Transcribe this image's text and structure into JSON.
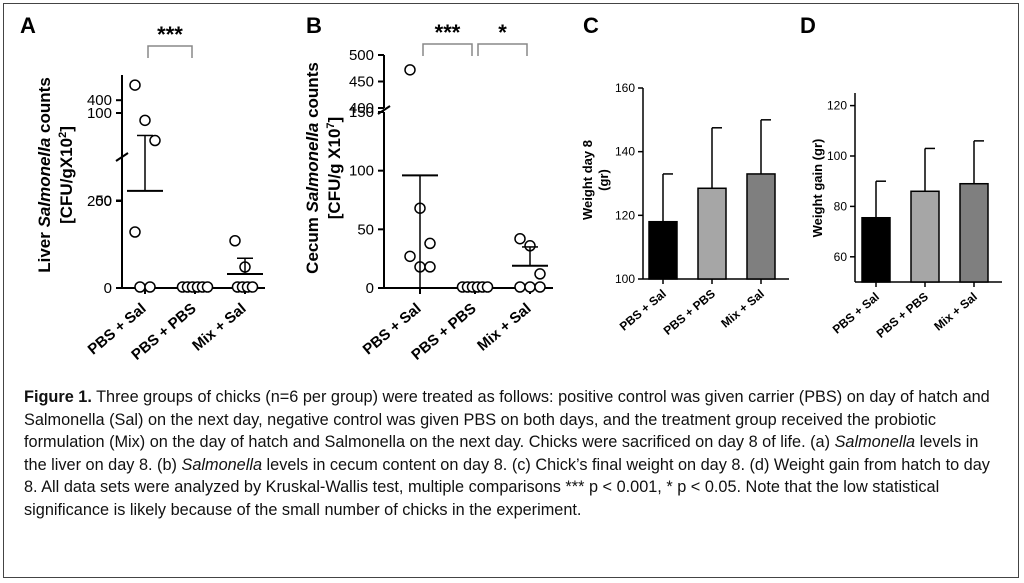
{
  "caption": {
    "figure_number": "Figure 1.",
    "parts": [
      {
        "t": " Three groups of chicks (n=6 per group) were treated as follows: positive control was given carrier (PBS) on day of hatch and Salmonella (Sal) on the next day, negative control was given PBS on both days, and the treatment group received the probiotic formulation (Mix) on the day of hatch and Salmonella on the next day. Chicks were sacrificed on day 8 of life. (a) ",
        "i": false
      },
      {
        "t": "Salmonella",
        "i": true
      },
      {
        "t": " levels in the liver on day 8. (b) ",
        "i": false
      },
      {
        "t": "Salmonella",
        "i": true
      },
      {
        "t": " levels in cecum content on day 8. (c) Chick’s final weight on day 8. (d) Weight gain from hatch to day 8. All data sets were analyzed by Kruskal-Wallis test, multiple comparisons *** p < 0.001, * p < 0.05. Note that the low statistical significance is likely because of the small number of chicks in the experiment.",
        "i": false
      }
    ]
  },
  "chart_data": [
    {
      "panel": "A",
      "type": "scatter",
      "ylabel_parts": [
        "Liver ",
        "Salmonella",
        " counts"
      ],
      "ylabel_unit": "[CFU/gX10",
      "ylabel_unit_sup": "2",
      "ylabel_unit_end": "]",
      "categories": [
        "PBS + Sal",
        "PBS + PBS",
        "Mix + Sal"
      ],
      "axis_segments": [
        {
          "ylim": [
            0,
            100
          ],
          "ticks": [
            0,
            50,
            100
          ]
        },
        {
          "ylim": [
            200,
            450
          ],
          "ticks": [
            200,
            400
          ]
        }
      ],
      "points": [
        {
          "category": "PBS + Sal",
          "values": [
            430,
            360,
            320,
            32,
            1,
            1
          ]
        },
        {
          "category": "PBS + PBS",
          "values": [
            0,
            0,
            0,
            0,
            0,
            0
          ]
        },
        {
          "category": "Mix + Sal",
          "values": [
            27,
            12,
            2,
            2,
            2,
            2
          ]
        }
      ],
      "mean": [
        220,
        0,
        8
      ],
      "sd_upper": [
        330,
        0,
        17
      ],
      "significance": [
        {
          "from": "PBS + Sal",
          "to": "PBS + PBS",
          "label": "***"
        }
      ]
    },
    {
      "panel": "B",
      "type": "scatter",
      "ylabel_parts": [
        "Cecum ",
        "Salmonella",
        " counts"
      ],
      "ylabel_unit": "[CFU/g X10",
      "ylabel_unit_sup": "7",
      "ylabel_unit_end": "]",
      "categories": [
        "PBS + Sal",
        "PBS + PBS",
        "Mix + Sal"
      ],
      "axis_segments": [
        {
          "ylim": [
            0,
            150
          ],
          "ticks": [
            0,
            50,
            100,
            150
          ]
        },
        {
          "ylim": [
            400,
            500
          ],
          "ticks": [
            400,
            450,
            500
          ]
        }
      ],
      "points": [
        {
          "category": "PBS + Sal",
          "values": [
            472,
            68,
            38,
            27,
            18,
            18
          ]
        },
        {
          "category": "PBS + PBS",
          "values": [
            0,
            0,
            0,
            0,
            0,
            0
          ]
        },
        {
          "category": "Mix + Sal",
          "values": [
            42,
            36,
            12,
            2,
            2,
            2
          ]
        }
      ],
      "mean": [
        96,
        0,
        19
      ],
      "sd_upper": [
        181,
        0,
        35
      ],
      "significance": [
        {
          "from": "PBS + Sal",
          "to": "PBS + PBS",
          "label": "***"
        },
        {
          "from": "PBS + PBS",
          "to": "Mix + Sal",
          "label": "*"
        }
      ]
    },
    {
      "panel": "C",
      "type": "bar",
      "ylabel": "Weight day 8",
      "ylabel2": "(gr)",
      "categories": [
        "PBS + Sal",
        "PBS + PBS",
        "Mix + Sal"
      ],
      "values": [
        118,
        128.5,
        133
      ],
      "error_upper": [
        133,
        147.5,
        150
      ],
      "colors": [
        "#000000",
        "#a6a6a6",
        "#7f7f7f"
      ],
      "ylim": [
        100,
        160
      ],
      "ticks": [
        100,
        120,
        140,
        160
      ]
    },
    {
      "panel": "D",
      "type": "bar",
      "ylabel": "Weight gain (gr)",
      "categories": [
        "PBS + Sal",
        "PBS + PBS",
        "Mix + Sal"
      ],
      "values": [
        75.5,
        86,
        89
      ],
      "error_upper": [
        90,
        103,
        106
      ],
      "colors": [
        "#000000",
        "#a6a6a6",
        "#7f7f7f"
      ],
      "ylim": [
        50,
        125
      ],
      "ticks": [
        60,
        80,
        100,
        120
      ]
    }
  ]
}
